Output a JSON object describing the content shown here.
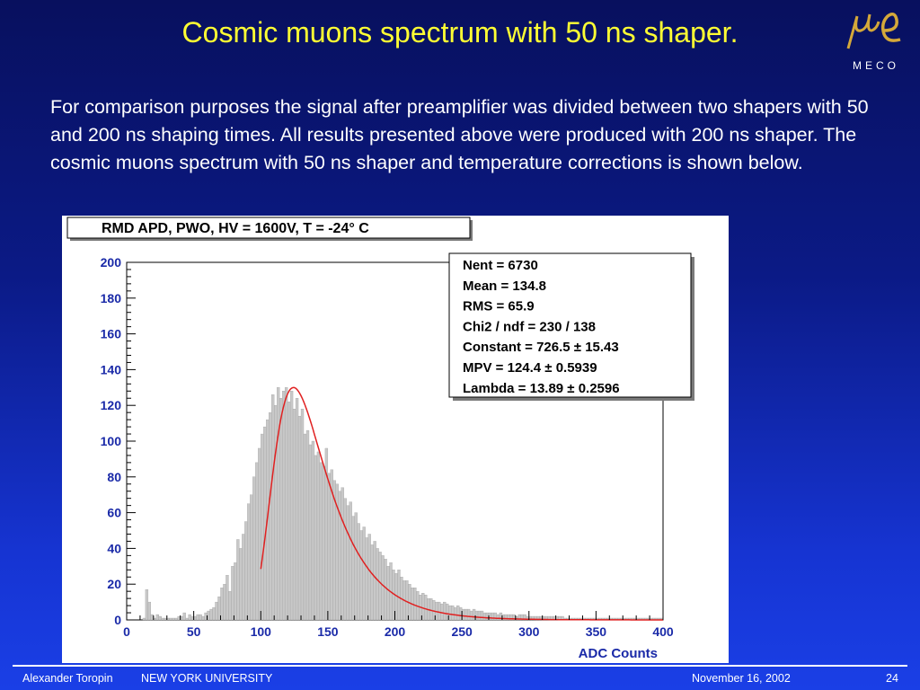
{
  "slide": {
    "title": "Cosmic muons spectrum with 50 ns shaper.",
    "paragraph": "For comparison purposes the signal after preamplifier was divided between two shapers with 50 and 200 ns shaping times. All results presented above were produced with 200 ns shaper. The cosmic muons spectrum with 50 ns shaper and temperature corrections is shown below."
  },
  "logo": {
    "text": "MECO"
  },
  "footer": {
    "author": "Alexander Toropin",
    "institution": "NEW YORK UNIVERSITY",
    "date": "November 16, 2002",
    "page": "24"
  },
  "colors": {
    "title": "#ffff33",
    "histogram_fill": "#c8c8c8",
    "fit_curve": "#e02020"
  },
  "chart_data": {
    "type": "bar",
    "title": "RMD APD, PWO, HV = 1600V, T = -24° C",
    "xlabel": "ADC Counts",
    "ylabel": "",
    "xlim": [
      0,
      400
    ],
    "ylim": [
      0,
      200
    ],
    "x_ticks": [
      "0",
      "50",
      "100",
      "150",
      "200",
      "250",
      "300",
      "350",
      "400"
    ],
    "y_ticks": [
      "0",
      "20",
      "40",
      "60",
      "80",
      "100",
      "120",
      "140",
      "160",
      "180",
      "200"
    ],
    "grid": false,
    "bin_width": 2,
    "bin_start": 0,
    "values": [
      0,
      0,
      0,
      0,
      0,
      0,
      1,
      17,
      10,
      3,
      1,
      3,
      2,
      1,
      1,
      1,
      1,
      1,
      1,
      2,
      2,
      4,
      1,
      3,
      2,
      2,
      3,
      3,
      2,
      4,
      5,
      6,
      7,
      10,
      13,
      18,
      20,
      25,
      16,
      30,
      32,
      45,
      40,
      48,
      55,
      65,
      70,
      80,
      88,
      96,
      104,
      108,
      112,
      116,
      126,
      120,
      130,
      124,
      128,
      130,
      122,
      128,
      118,
      124,
      114,
      118,
      104,
      106,
      98,
      100,
      92,
      94,
      88,
      86,
      96,
      82,
      84,
      78,
      76,
      72,
      74,
      68,
      64,
      66,
      58,
      60,
      54,
      50,
      52,
      46,
      48,
      42,
      44,
      40,
      38,
      36,
      34,
      30,
      32,
      28,
      26,
      28,
      24,
      22,
      22,
      20,
      18,
      18,
      16,
      14,
      15,
      14,
      12,
      12,
      11,
      10,
      10,
      9,
      10,
      9,
      8,
      8,
      7,
      8,
      7,
      6,
      6,
      6,
      5,
      6,
      5,
      5,
      5,
      4,
      4,
      4,
      4,
      4,
      3,
      4,
      3,
      3,
      3,
      3,
      3,
      2,
      3,
      3,
      3,
      2,
      2,
      2,
      2,
      2,
      2,
      2,
      2,
      2,
      2,
      2,
      2,
      2,
      2,
      1,
      1,
      1,
      1,
      1,
      1,
      1,
      1,
      1,
      1,
      1,
      1,
      1,
      1,
      1,
      1,
      1,
      1,
      1,
      1,
      1,
      1,
      1,
      1,
      1,
      1,
      1,
      1,
      1,
      1,
      1,
      1,
      1,
      1,
      1,
      1,
      1
    ],
    "fit": {
      "function": "landau",
      "range": [
        100,
        400
      ],
      "constant": 726.5,
      "mpv": 124.4,
      "lambda": 13.89
    },
    "stats_box": [
      "Nent = 6730",
      "Mean  =  134.8",
      "RMS   =   65.9",
      "Chi2 / ndf =   230 / 138",
      "Constant = 726.5 ± 15.43",
      "MPV      = 124.4 ± 0.5939",
      "Lambda = 13.89 ± 0.2596"
    ]
  }
}
